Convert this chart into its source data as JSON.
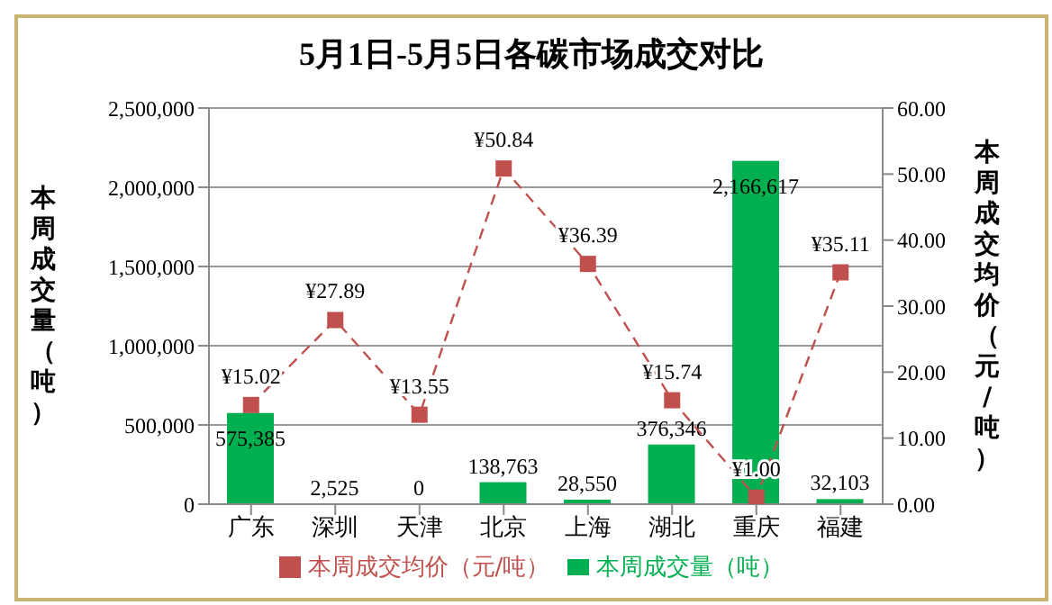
{
  "chart_data": {
    "type": "bar",
    "title": "5月1日-5月5日各碳市场成交对比",
    "ylabel": "本周成交量（吨）",
    "y2label": "本周成交均价（元/吨）",
    "categories": [
      "广东",
      "深圳",
      "天津",
      "北京",
      "上海",
      "湖北",
      "重庆",
      "福建"
    ],
    "series": [
      {
        "name": "本周成交量（吨）",
        "color": "#00b050",
        "values": [
          575385,
          2525,
          0,
          138763,
          28550,
          376346,
          2166617,
          32103
        ],
        "value_labels": [
          "575,385",
          "2,525",
          "0",
          "138,763",
          "28,550",
          "376,346",
          "2,166,617",
          "32,103"
        ]
      },
      {
        "name": "本周成交均价（元/吨）",
        "type": "line",
        "axis": "y2",
        "color": "#c0504d",
        "marker": "square",
        "line_style": "dashed",
        "values": [
          15.02,
          27.89,
          13.55,
          50.84,
          36.39,
          15.74,
          1.0,
          35.11
        ],
        "value_labels": [
          "¥15.02",
          "¥27.89",
          "¥13.55",
          "¥50.84",
          "¥36.39",
          "¥15.74",
          "¥1.00",
          "¥35.11"
        ]
      }
    ],
    "ylim": [
      0,
      2500000
    ],
    "yticks": [
      {
        "value": 0,
        "label": "0"
      },
      {
        "value": 500000,
        "label": "500,000"
      },
      {
        "value": 1000000,
        "label": "1,000,000"
      },
      {
        "value": 1500000,
        "label": "1,500,000"
      },
      {
        "value": 2000000,
        "label": "2,000,000"
      },
      {
        "value": 2500000,
        "label": "2,500,000"
      }
    ],
    "y2lim": [
      0,
      60
    ],
    "y2ticks": [
      {
        "value": 0,
        "label": "0.00"
      },
      {
        "value": 10,
        "label": "10.00"
      },
      {
        "value": 20,
        "label": "20.00"
      },
      {
        "value": 30,
        "label": "30.00"
      },
      {
        "value": 40,
        "label": "40.00"
      },
      {
        "value": 50,
        "label": "50.00"
      },
      {
        "value": 60,
        "label": "60.00"
      }
    ],
    "grid": "y",
    "legend": "bottom"
  }
}
